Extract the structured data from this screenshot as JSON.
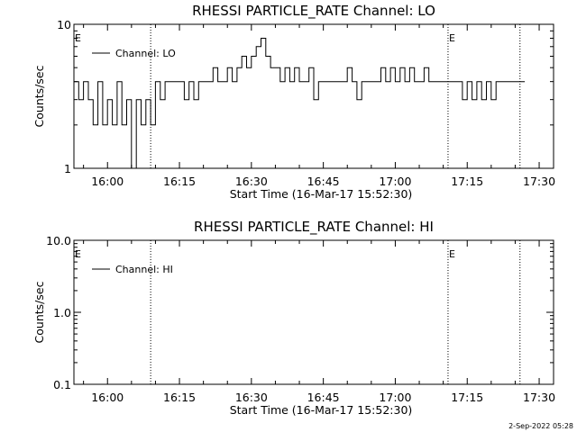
{
  "chart_data": [
    {
      "type": "line",
      "title": "RHESSI PARTICLE_RATE Channel: LO",
      "xlabel": "Start Time (16-Mar-17 15:52:30)",
      "ylabel": "Counts/sec",
      "yscale": "log",
      "ylim": [
        1,
        10
      ],
      "xlim": [
        "15:53",
        "17:33"
      ],
      "xticks": [
        "16:00",
        "16:15",
        "16:30",
        "16:45",
        "17:00",
        "17:15",
        "17:30"
      ],
      "yticks": [
        "1",
        "10"
      ],
      "legend": "top-left",
      "series": [
        {
          "name": "Channel: LO",
          "x": [
            "15:53",
            "15:54",
            "15:55",
            "15:56",
            "15:57",
            "15:58",
            "15:59",
            "16:00",
            "16:01",
            "16:02",
            "16:03",
            "16:04",
            "16:05",
            "16:06",
            "16:07",
            "16:08",
            "16:09",
            "16:10",
            "16:11",
            "16:12",
            "16:13",
            "16:14",
            "16:15",
            "16:16",
            "16:17",
            "16:18",
            "16:19",
            "16:20",
            "16:21",
            "16:22",
            "16:23",
            "16:24",
            "16:25",
            "16:26",
            "16:27",
            "16:28",
            "16:29",
            "16:30",
            "16:31",
            "16:32",
            "16:33",
            "16:34",
            "16:35",
            "16:36",
            "16:37",
            "16:38",
            "16:39",
            "16:40",
            "16:41",
            "16:42",
            "16:43",
            "16:44",
            "16:45",
            "16:46",
            "16:47",
            "16:48",
            "16:49",
            "16:50",
            "16:51",
            "16:52",
            "16:53",
            "16:54",
            "16:55",
            "16:56",
            "16:57",
            "16:58",
            "16:59",
            "17:00",
            "17:01",
            "17:02",
            "17:03",
            "17:04",
            "17:05",
            "17:06",
            "17:07",
            "17:08",
            "17:09",
            "17:10",
            "17:11",
            "17:12",
            "17:13",
            "17:14",
            "17:15",
            "17:16",
            "17:17",
            "17:18",
            "17:19",
            "17:20",
            "17:21",
            "17:22",
            "17:23",
            "17:24",
            "17:25",
            "17:26"
          ],
          "values": [
            4,
            3,
            4,
            3,
            2,
            4,
            2,
            3,
            2,
            4,
            2,
            3,
            1,
            3,
            2,
            3,
            2,
            4,
            3,
            4,
            4,
            4,
            4,
            3,
            4,
            3,
            4,
            4,
            4,
            5,
            4,
            4,
            5,
            4,
            5,
            6,
            5,
            6,
            7,
            8,
            6,
            5,
            5,
            4,
            5,
            4,
            5,
            4,
            4,
            5,
            3,
            4,
            4,
            4,
            4,
            4,
            4,
            5,
            4,
            3,
            4,
            4,
            4,
            4,
            5,
            4,
            5,
            4,
            5,
            4,
            5,
            4,
            4,
            5,
            4,
            4,
            4,
            4,
            4,
            4,
            4,
            3,
            4,
            3,
            4,
            3,
            4,
            3,
            4,
            4,
            4,
            4,
            4,
            4
          ]
        }
      ],
      "annotations": [
        {
          "label": "E",
          "x": "15:53"
        },
        {
          "label": "E",
          "x": "17:11"
        }
      ],
      "vlines": [
        "16:09",
        "17:11",
        "17:26"
      ]
    },
    {
      "type": "line",
      "title": "RHESSI PARTICLE_RATE Channel: HI",
      "xlabel": "Start Time (16-Mar-17 15:52:30)",
      "ylabel": "Counts/sec",
      "yscale": "log",
      "ylim": [
        0.1,
        10
      ],
      "xlim": [
        "15:53",
        "17:33"
      ],
      "xticks": [
        "16:00",
        "16:15",
        "16:30",
        "16:45",
        "17:00",
        "17:15",
        "17:30"
      ],
      "yticks": [
        "0.1",
        "1.0",
        "10.0"
      ],
      "legend": "top-left",
      "series": [
        {
          "name": "Channel: HI",
          "x": [],
          "values": []
        }
      ],
      "annotations": [
        {
          "label": "E",
          "x": "15:53"
        },
        {
          "label": "E",
          "x": "17:11"
        }
      ],
      "vlines": [
        "16:09",
        "17:11",
        "17:26"
      ]
    }
  ],
  "footer": {
    "timestamp": "2-Sep-2022 05:28"
  }
}
